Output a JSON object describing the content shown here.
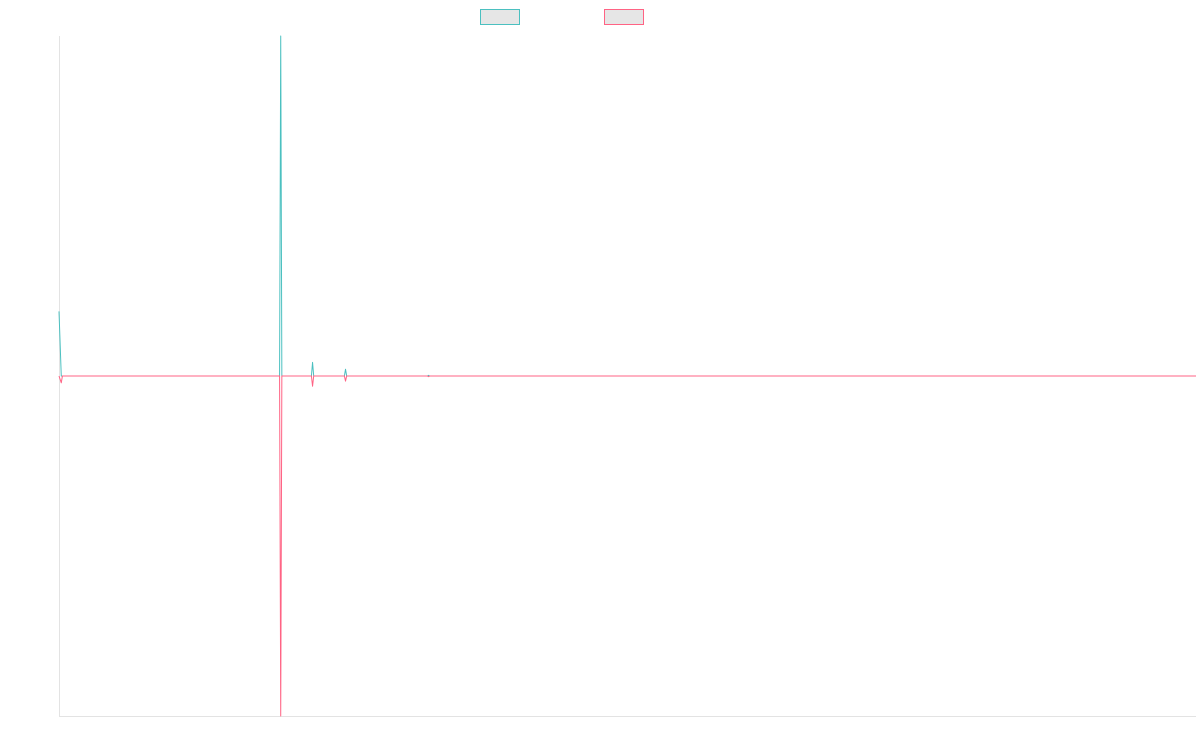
{
  "chart_data": {
    "type": "line",
    "title": "",
    "xlabel": "",
    "ylabel": "",
    "grid": false,
    "legend_position": "top-center",
    "xlim": [
      0,
      1000
    ],
    "ylim": [
      -1,
      1
    ],
    "series": [
      {
        "name": "",
        "color": "#4bc0c0",
        "points": [
          [
            0,
            0.19
          ],
          [
            2,
            0
          ],
          [
            190,
            0
          ],
          [
            194,
            0
          ],
          [
            195,
            1
          ],
          [
            196,
            0
          ],
          [
            198,
            0
          ],
          [
            215,
            0
          ],
          [
            216,
            0
          ],
          [
            222,
            0
          ],
          [
            223,
            0.04
          ],
          [
            224,
            0
          ],
          [
            251,
            0
          ],
          [
            252,
            0.02
          ],
          [
            253,
            0
          ],
          [
            324,
            0
          ],
          [
            325,
            0.002
          ],
          [
            326,
            0
          ],
          [
            1000,
            0
          ]
        ]
      },
      {
        "name": "",
        "color": "#ff6384",
        "points": [
          [
            0,
            0
          ],
          [
            2,
            -0.02
          ],
          [
            3,
            0
          ],
          [
            190,
            0
          ],
          [
            194,
            0
          ],
          [
            195,
            -1
          ],
          [
            196,
            0
          ],
          [
            198,
            0
          ],
          [
            215,
            0
          ],
          [
            216,
            0
          ],
          [
            222,
            0
          ],
          [
            223,
            -0.03
          ],
          [
            224,
            0
          ],
          [
            251,
            0
          ],
          [
            252,
            -0.015
          ],
          [
            253,
            0
          ],
          [
            324,
            0
          ],
          [
            325,
            -0.002
          ],
          [
            326,
            0
          ],
          [
            1000,
            0
          ]
        ]
      }
    ]
  }
}
